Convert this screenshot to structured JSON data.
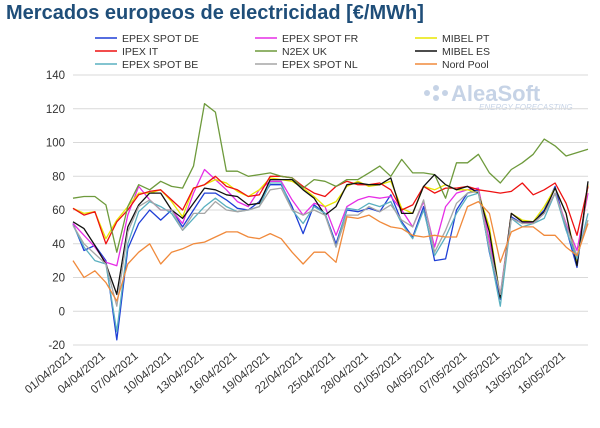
{
  "chart_data": {
    "type": "line",
    "title": "Mercados europeos de electricidad [€/MWh]",
    "xlabel": "",
    "ylabel": "",
    "ylim": [
      -20,
      140
    ],
    "yticks": [
      -20,
      0,
      20,
      40,
      60,
      80,
      100,
      120,
      140
    ],
    "grid": "horizontal",
    "legend_position": "top",
    "x_tick_labels": [
      "01/04/2021",
      "04/04/2021",
      "07/04/2021",
      "10/04/2021",
      "13/04/2021",
      "16/04/2021",
      "19/04/2021",
      "22/04/2021",
      "25/04/2021",
      "28/04/2021",
      "01/05/2021",
      "04/05/2021",
      "07/05/2021",
      "10/05/2021",
      "13/05/2021",
      "16/05/2021"
    ],
    "x": [
      "01/04",
      "02/04",
      "03/04",
      "04/04",
      "05/04",
      "06/04",
      "07/04",
      "08/04",
      "09/04",
      "10/04",
      "11/04",
      "12/04",
      "13/04",
      "14/04",
      "15/04",
      "16/04",
      "17/04",
      "18/04",
      "19/04",
      "20/04",
      "21/04",
      "22/04",
      "23/04",
      "24/04",
      "25/04",
      "26/04",
      "27/04",
      "28/04",
      "29/04",
      "30/04",
      "01/05",
      "02/05",
      "03/05",
      "04/05",
      "05/05",
      "06/05",
      "07/05",
      "08/05",
      "09/05",
      "10/05",
      "11/05",
      "12/05",
      "13/05",
      "14/05",
      "15/05",
      "16/05",
      "17/05",
      "18/05"
    ],
    "series": [
      {
        "name": "EPEX SPOT DE",
        "color": "#1f3fd6",
        "values": [
          52,
          36,
          39,
          30,
          -17,
          37,
          52,
          60,
          54,
          60,
          50,
          60,
          70,
          70,
          66,
          61,
          60,
          65,
          75,
          75,
          62,
          46,
          63,
          58,
          40,
          60,
          59,
          61,
          59,
          69,
          53,
          44,
          62,
          30,
          31,
          60,
          70,
          72,
          35,
          7,
          56,
          52,
          53,
          60,
          74,
          49,
          26,
          75
        ]
      },
      {
        "name": "EPEX SPOT FR",
        "color": "#e62ee6",
        "values": [
          52,
          45,
          38,
          29,
          27,
          57,
          74,
          66,
          60,
          60,
          52,
          70,
          84,
          78,
          72,
          65,
          62,
          72,
          77,
          77,
          66,
          57,
          64,
          62,
          45,
          62,
          66,
          68,
          67,
          68,
          60,
          50,
          65,
          38,
          62,
          70,
          72,
          73,
          42,
          10,
          58,
          53,
          52,
          58,
          70,
          52,
          36,
          70
        ]
      },
      {
        "name": "MIBEL PT",
        "color": "#e8e600",
        "values": [
          61,
          58,
          59,
          43,
          54,
          62,
          70,
          70,
          72,
          65,
          56,
          73,
          75,
          78,
          76,
          71,
          68,
          72,
          79,
          78,
          77,
          73,
          68,
          62,
          65,
          74,
          77,
          74,
          75,
          77,
          61,
          58,
          74,
          72,
          75,
          72,
          72,
          70,
          50,
          8,
          58,
          54,
          53,
          62,
          73,
          58,
          29,
          75
        ]
      },
      {
        "name": "IPEX IT",
        "color": "#ee1111",
        "values": [
          61,
          57,
          59,
          40,
          53,
          60,
          69,
          71,
          72,
          66,
          60,
          73,
          75,
          80,
          74,
          72,
          68,
          69,
          80,
          80,
          79,
          74,
          70,
          68,
          74,
          77,
          75,
          75,
          76,
          72,
          60,
          63,
          74,
          70,
          73,
          73,
          74,
          72,
          71,
          70,
          71,
          76,
          69,
          72,
          76,
          64,
          45,
          74
        ]
      },
      {
        "name": "N2EX UK",
        "color": "#6e9a3c",
        "values": [
          67,
          68,
          68,
          63,
          35,
          62,
          75,
          72,
          77,
          74,
          73,
          86,
          123,
          118,
          83,
          83,
          80,
          81,
          82,
          80,
          79,
          73,
          78,
          77,
          74,
          78,
          78,
          82,
          86,
          80,
          90,
          82,
          82,
          81,
          67,
          88,
          88,
          93,
          82,
          76,
          84,
          88,
          93,
          102,
          98,
          92,
          94,
          96
        ]
      },
      {
        "name": "MIBEL ES",
        "color": "#111111",
        "values": [
          53,
          49,
          39,
          28,
          10,
          50,
          63,
          70,
          70,
          60,
          55,
          64,
          73,
          72,
          69,
          68,
          63,
          64,
          78,
          78,
          78,
          72,
          67,
          57,
          62,
          75,
          76,
          75,
          75,
          79,
          58,
          58,
          74,
          81,
          75,
          72,
          74,
          70,
          47,
          8,
          58,
          53,
          53,
          59,
          73,
          58,
          27,
          77
        ]
      },
      {
        "name": "EPEX SPOT BE",
        "color": "#5ab0c0",
        "values": [
          51,
          38,
          30,
          28,
          -12,
          40,
          59,
          65,
          62,
          58,
          48,
          55,
          62,
          67,
          62,
          59,
          60,
          62,
          76,
          76,
          60,
          52,
          62,
          58,
          38,
          61,
          60,
          64,
          62,
          65,
          52,
          43,
          60,
          33,
          44,
          58,
          68,
          70,
          36,
          3,
          55,
          50,
          52,
          55,
          70,
          48,
          31,
          58
        ]
      },
      {
        "name": "EPEX SPOT NL",
        "color": "#a6a6a6",
        "values": [
          51,
          40,
          34,
          28,
          3,
          47,
          62,
          66,
          60,
          60,
          48,
          58,
          58,
          65,
          60,
          59,
          60,
          62,
          72,
          73,
          60,
          57,
          60,
          57,
          38,
          57,
          57,
          62,
          59,
          63,
          54,
          50,
          66,
          35,
          48,
          64,
          70,
          71,
          38,
          10,
          55,
          52,
          52,
          58,
          70,
          51,
          33,
          54
        ]
      },
      {
        "name": "Nord Pool",
        "color": "#f08a3c",
        "values": [
          30,
          20,
          24,
          17,
          6,
          28,
          35,
          40,
          28,
          35,
          37,
          40,
          41,
          44,
          47,
          47,
          44,
          43,
          46,
          43,
          35,
          28,
          35,
          35,
          29,
          56,
          55,
          57,
          53,
          50,
          49,
          45,
          44,
          45,
          44,
          44,
          62,
          65,
          58,
          29,
          47,
          50,
          50,
          45,
          45,
          38,
          33,
          52
        ]
      }
    ]
  },
  "watermark": {
    "name": "AleaSoft",
    "tagline": "ENERGY FORECASTING"
  }
}
